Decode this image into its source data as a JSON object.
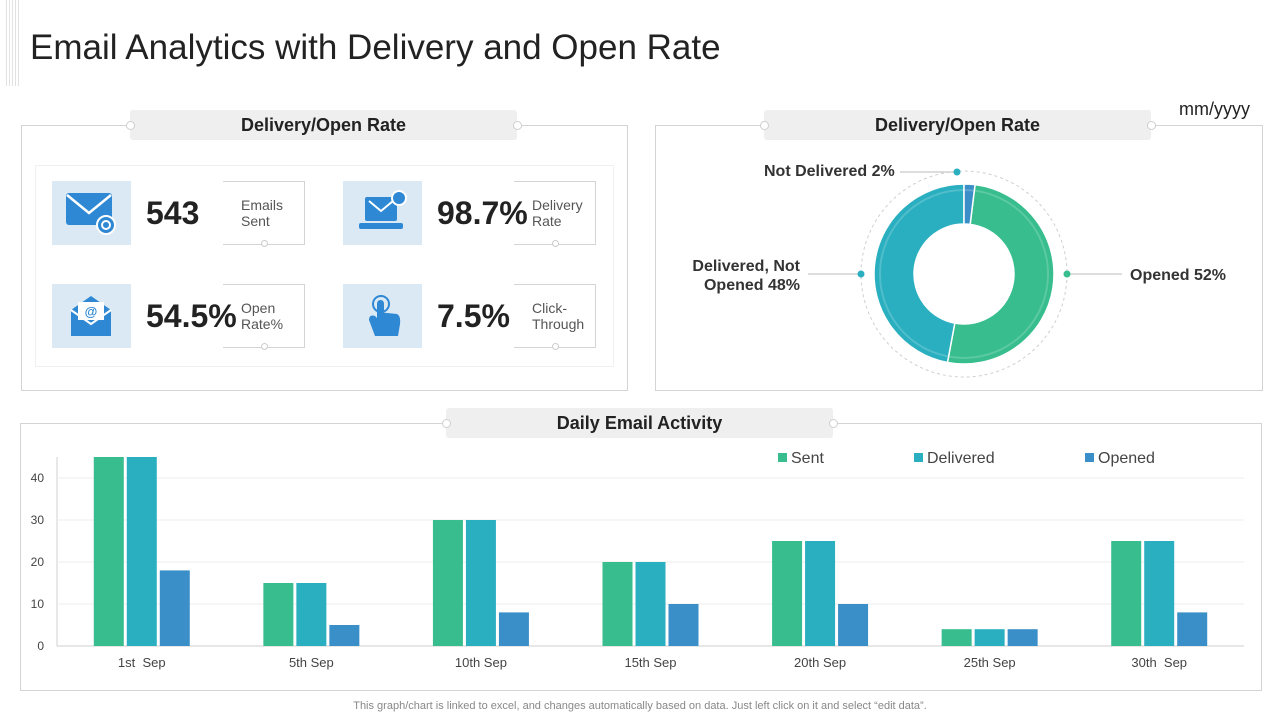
{
  "title": "Email Analytics with Delivery and Open Rate",
  "date_label": "mm/yyyy",
  "kpi_panel": {
    "header": "Delivery/Open Rate",
    "cards": [
      {
        "value": "543",
        "label_line1": "Emails",
        "label_line2": "Sent",
        "icon": "envelope-icon"
      },
      {
        "value": "98.7%",
        "label_line1": "Delivery",
        "label_line2": "Rate",
        "icon": "laptop-mail-icon"
      },
      {
        "value": "54.5%",
        "label_line1": "Open",
        "label_line2": "Rate%",
        "icon": "open-envelope-icon"
      },
      {
        "value": "7.5%",
        "label_line1": "Click-",
        "label_line2": "Through",
        "icon": "click-hand-icon"
      }
    ]
  },
  "donut_panel": {
    "header": "Delivery/Open Rate",
    "labels": {
      "not_delivered": "Not Delivered 2%",
      "delivered_line1": "Delivered, Not",
      "delivered_line2": "Opened 48%",
      "opened": "Opened 52%"
    }
  },
  "activity_panel": {
    "header": "Daily Email Activity"
  },
  "chart_data": [
    {
      "type": "pie",
      "title": "Delivery/Open Rate",
      "categories": [
        "Opened",
        "Delivered, Not Opened",
        "Not Delivered"
      ],
      "values": [
        52,
        48,
        2
      ],
      "colors": [
        "#37bd8e",
        "#2aafc0",
        "#3a8fc9"
      ]
    },
    {
      "type": "bar",
      "title": "Daily Email Activity",
      "categories": [
        "1st  Sep",
        "5th Sep",
        "10th Sep",
        "15th Sep",
        "20th Sep",
        "25th Sep",
        "30th  Sep"
      ],
      "series": [
        {
          "name": "Sent",
          "color": "#37bd8e",
          "values": [
            45,
            15,
            30,
            20,
            25,
            4,
            25
          ]
        },
        {
          "name": "Delivered",
          "color": "#2aafc0",
          "values": [
            45,
            15,
            30,
            20,
            25,
            4,
            25
          ]
        },
        {
          "name": "Opened",
          "color": "#3a8fc9",
          "values": [
            18,
            5,
            8,
            10,
            10,
            4,
            8
          ]
        }
      ],
      "yticks": [
        "0",
        "10",
        "20",
        "30",
        "40"
      ],
      "ylim": [
        0,
        45
      ],
      "grid": true,
      "legend": "top-right",
      "xlabel": "",
      "ylabel": ""
    }
  ],
  "footnote": "This graph/chart is linked to excel,  and changes automatically based on data. Just left click on it and select “edit data”."
}
